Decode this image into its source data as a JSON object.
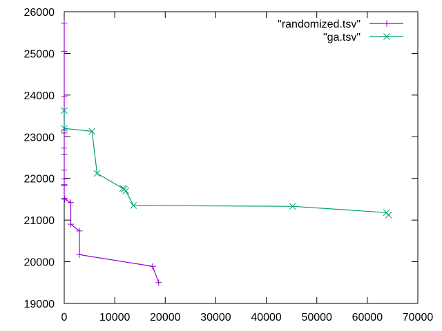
{
  "chart_data": {
    "type": "line",
    "title": "",
    "xlabel": "",
    "ylabel": "",
    "xlim": [
      0,
      70000
    ],
    "ylim": [
      19000,
      26000
    ],
    "xticks": [
      0,
      10000,
      20000,
      30000,
      40000,
      50000,
      60000,
      70000
    ],
    "yticks": [
      19000,
      20000,
      21000,
      22000,
      23000,
      24000,
      25000,
      26000
    ],
    "grid": false,
    "legend_position": "top-right",
    "series": [
      {
        "name": "\"randomized.tsv\"",
        "color": "#9400d3",
        "marker": "plus",
        "x": [
          0,
          0,
          0,
          0,
          0,
          0,
          0,
          0,
          0,
          0,
          0,
          0,
          100,
          1300,
          1300,
          3000,
          3000,
          17500,
          18700
        ],
        "y": [
          25730,
          25050,
          23960,
          23160,
          23090,
          22730,
          22570,
          22200,
          21990,
          21850,
          21830,
          21520,
          21500,
          21420,
          20900,
          20740,
          20170,
          19890,
          19500
        ]
      },
      {
        "name": "\"ga.tsv\"",
        "color": "#009e73",
        "marker": "cross",
        "x": [
          0,
          0,
          5500,
          6500,
          11600,
          11900,
          12200,
          13700,
          45200,
          63800,
          64200
        ],
        "y": [
          23630,
          23200,
          23130,
          22120,
          21760,
          21740,
          21700,
          21350,
          21330,
          21180,
          21120
        ]
      }
    ]
  }
}
